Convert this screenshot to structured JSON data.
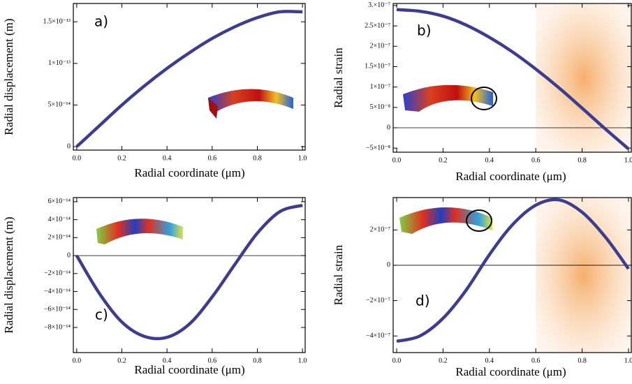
{
  "chart_data": [
    {
      "type": "line",
      "annotation": "a)",
      "ylabel": "Radial displacement (m)",
      "xlabel": "Radial coordinate (μm)",
      "x": [
        0,
        0.1,
        0.2,
        0.3,
        0.4,
        0.5,
        0.6,
        0.7,
        0.8,
        0.9,
        1.0
      ],
      "values": [
        0,
        2.5e-14,
        5e-14,
        7.3e-14,
        9.4e-14,
        1.13e-13,
        1.3e-13,
        1.44e-13,
        1.55e-13,
        1.62e-13,
        1.62e-13
      ],
      "color": "#3d3d8f",
      "xlim": [
        -0.015,
        1.015
      ],
      "ylim": [
        -4.2e-15,
        1.72e-13
      ],
      "xticks": [
        {
          "value": 0,
          "label": "0.0"
        },
        0.2,
        0.4,
        0.6,
        0.8,
        {
          "value": 1,
          "label": "1.0"
        }
      ],
      "yticks": [
        0,
        {
          "value": 5e-14,
          "label": "5×10⁻¹⁴"
        },
        {
          "value": 1e-13,
          "label": "1×10⁻¹³"
        },
        {
          "value": 1.5e-13,
          "label": "1.5×10⁻¹³"
        }
      ],
      "zero_line": false
    },
    {
      "type": "line",
      "annotation": "b)",
      "ylabel": "Radial strain",
      "xlabel": "Radial coordinate (μm)",
      "x": [
        0,
        0.1,
        0.2,
        0.3,
        0.4,
        0.5,
        0.6,
        0.7,
        0.8,
        0.9,
        1.0
      ],
      "values": [
        2.9e-07,
        2.86e-07,
        2.74e-07,
        2.52e-07,
        2.22e-07,
        1.86e-07,
        1.44e-07,
        9.8e-08,
        4.8e-08,
        -3e-09,
        -5.2e-08
      ],
      "color": "#3d3d8f",
      "xlim": [
        -0.015,
        1.015
      ],
      "ylim": [
        -6e-08,
        3.05e-07
      ],
      "xticks": [
        {
          "value": 0,
          "label": "0.0"
        },
        0.2,
        0.4,
        0.6,
        0.8,
        {
          "value": 1,
          "label": "1.0"
        }
      ],
      "yticks": [
        {
          "value": -5e-08,
          "label": "−5×10⁻⁸"
        },
        0,
        {
          "value": 5e-08,
          "label": "5×10⁻⁸"
        },
        {
          "value": 1e-07,
          "label": "1×10⁻⁷"
        },
        {
          "value": 1.5e-07,
          "label": "1.5×10⁻⁷"
        },
        {
          "value": 2e-07,
          "label": "2×10⁻⁷"
        },
        {
          "value": 2.5e-07,
          "label": "2.5×10⁻⁷"
        },
        {
          "value": 3e-07,
          "label": "3.×10⁻⁷"
        }
      ],
      "zero_line": true,
      "highlight_xrange": [
        0.6,
        1.015
      ]
    },
    {
      "type": "line",
      "annotation": "c)",
      "ylabel": "Radial displacement (m)",
      "xlabel": "Radial coordinate (μm)",
      "x": [
        0,
        0.1,
        0.2,
        0.3,
        0.4,
        0.5,
        0.6,
        0.7,
        0.8,
        0.9,
        1.0
      ],
      "values": [
        0,
        -4.2e-14,
        -7.4e-14,
        -9e-14,
        -9.1e-14,
        -7.6e-14,
        -4.6e-14,
        -1e-14,
        2.5e-14,
        4.9e-14,
        5.6e-14
      ],
      "color": "#3d3d8f",
      "xlim": [
        -0.015,
        1.015
      ],
      "ylim": [
        -1.08e-13,
        6.46e-14
      ],
      "xticks": [
        {
          "value": 0,
          "label": "0.0"
        },
        0.2,
        0.4,
        0.6,
        0.8,
        {
          "value": 1,
          "label": "1.0"
        }
      ],
      "yticks": [
        {
          "value": -8e-14,
          "label": "−8×10⁻¹⁴"
        },
        {
          "value": -6e-14,
          "label": "−6×10⁻¹⁴"
        },
        {
          "value": -4e-14,
          "label": "−4×10⁻¹⁴"
        },
        {
          "value": -2e-14,
          "label": "−2×10⁻¹⁴"
        },
        0,
        {
          "value": 2e-14,
          "label": "2×10⁻¹⁴"
        },
        {
          "value": 4e-14,
          "label": "4×10⁻¹⁴"
        },
        {
          "value": 6e-14,
          "label": "6×10⁻¹⁴"
        }
      ],
      "zero_line": true
    },
    {
      "type": "line",
      "annotation": "d)",
      "ylabel": "Radial strain",
      "xlabel": "Radial coordinate (μm)",
      "x": [
        0,
        0.1,
        0.2,
        0.3,
        0.4,
        0.5,
        0.6,
        0.7,
        0.8,
        0.9,
        1.0
      ],
      "values": [
        -4.3e-07,
        -4e-07,
        -3e-07,
        -1.4e-07,
        6e-08,
        2.3e-07,
        3.4e-07,
        3.7e-07,
        3e-07,
        1.6e-07,
        -2e-08
      ],
      "color": "#3d3d8f",
      "xlim": [
        -0.015,
        1.015
      ],
      "ylim": [
        -4.94e-07,
        3.83e-07
      ],
      "xticks": [
        {
          "value": 0,
          "label": "0.0"
        },
        0.2,
        0.4,
        0.6,
        0.8,
        {
          "value": 1,
          "label": "1.0"
        }
      ],
      "yticks": [
        {
          "value": -4e-07,
          "label": "−4×10⁻⁷"
        },
        {
          "value": -2e-07,
          "label": "−2×10⁻⁷"
        },
        0,
        {
          "value": 2e-07,
          "label": "2×10⁻⁷"
        }
      ],
      "zero_line": true,
      "highlight_xrange": [
        0.6,
        1.015
      ]
    }
  ]
}
